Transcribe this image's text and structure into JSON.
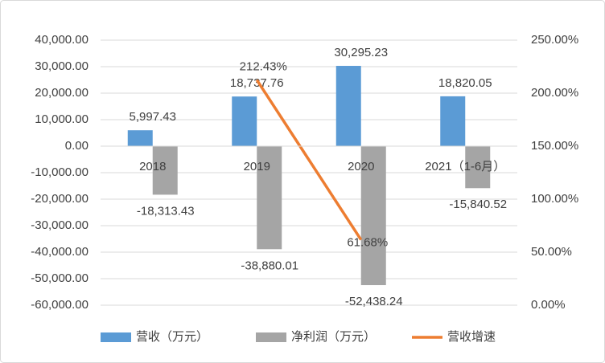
{
  "chart_data": {
    "type": "bar",
    "categories": [
      "2018",
      "2019",
      "2020",
      "2021（1-6月）"
    ],
    "series": [
      {
        "name": "营收（万元）",
        "color": "#5b9bd5",
        "values": [
          5997.43,
          18737.76,
          30295.23,
          18820.05
        ],
        "value_labels": [
          "5,997.43",
          "18,737.76",
          "30,295.23",
          "18,820.05"
        ]
      },
      {
        "name": "净利润（万元）",
        "color": "#a5a5a5",
        "values": [
          -18313.43,
          -38880.01,
          -52438.24,
          -15840.52
        ],
        "value_labels": [
          "-18,313.43",
          "-38,880.01",
          "-52,438.24",
          "-15,840.52"
        ]
      },
      {
        "name": "营收增速",
        "type": "line",
        "axis": "y2",
        "color": "#ed7d31",
        "values": [
          null,
          212.43,
          61.68,
          null
        ],
        "value_labels": [
          null,
          "212.43%",
          "61.68%",
          null
        ]
      }
    ],
    "ylim": [
      -60000,
      40000
    ],
    "yticks": [
      {
        "value": -60000,
        "label": "-60,000.00"
      },
      {
        "value": -50000,
        "label": "-50,000.00"
      },
      {
        "value": -40000,
        "label": "-40,000.00"
      },
      {
        "value": -30000,
        "label": "-30,000.00"
      },
      {
        "value": -20000,
        "label": "-20,000.00"
      },
      {
        "value": -10000,
        "label": "-10,000.00"
      },
      {
        "value": 0,
        "label": "0.00"
      },
      {
        "value": 10000,
        "label": "10,000.00"
      },
      {
        "value": 20000,
        "label": "20,000.00"
      },
      {
        "value": 30000,
        "label": "30,000.00"
      },
      {
        "value": 40000,
        "label": "40,000.00"
      }
    ],
    "y2lim": [
      0,
      250
    ],
    "y2ticks": [
      {
        "value": 0,
        "label": "0.00%"
      },
      {
        "value": 50,
        "label": "50.00%"
      },
      {
        "value": 100,
        "label": "100.00%"
      },
      {
        "value": 150,
        "label": "150.00%"
      },
      {
        "value": 200,
        "label": "200.00%"
      },
      {
        "value": 250,
        "label": "250.00%"
      }
    ],
    "grid": true,
    "legend": "bottom"
  }
}
